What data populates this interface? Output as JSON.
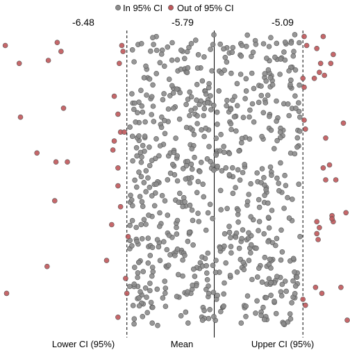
{
  "chart_data": {
    "type": "scatter",
    "title": "",
    "xlabel": "",
    "ylabel": "",
    "legend": {
      "placement": "top-center",
      "items": [
        {
          "label": "In 95% CI",
          "color": "#8c8c8c"
        },
        {
          "label": "Out of 95% CI",
          "color": "#c0575a"
        }
      ]
    },
    "reference_lines": [
      {
        "name": "lower",
        "value": -6.48,
        "value_label": "-6.48",
        "bottom_label": "Lower CI (95%)",
        "style": "dashed"
      },
      {
        "name": "mean",
        "value": -5.79,
        "value_label": "-5.79",
        "bottom_label": "Mean",
        "style": "solid"
      },
      {
        "name": "upper",
        "value": -5.09,
        "value_label": "-5.09",
        "bottom_label": "Upper CI (95%)",
        "style": "dashed"
      }
    ],
    "xlim": [
      -7.46,
      -4.74
    ],
    "ylim": [
      0,
      1
    ],
    "grid": false,
    "in_ci_color": "#8c8c8c",
    "out_ci_color": "#c0575a",
    "in_ci_count": 700,
    "series": [
      {
        "name": "Out of 95% CI",
        "points": [
          [
            -7.44,
            0.95
          ],
          [
            -7.03,
            0.96
          ],
          [
            -7.0,
            0.93
          ],
          [
            -7.33,
            0.89
          ],
          [
            -7.19,
            0.59
          ],
          [
            -7.32,
            0.71
          ],
          [
            -7.43,
            0.12
          ],
          [
            -7.11,
            0.21
          ],
          [
            -7.05,
            0.43
          ],
          [
            -7.04,
            0.56
          ],
          [
            -6.95,
            0.56
          ],
          [
            -6.55,
            0.54
          ],
          [
            -6.59,
            0.6
          ],
          [
            -6.58,
            0.63
          ],
          [
            -6.55,
            0.72
          ],
          [
            -6.53,
            0.66
          ],
          [
            -6.5,
            0.66
          ],
          [
            -6.53,
            0.41
          ],
          [
            -6.51,
            0.93
          ],
          [
            -6.52,
            0.95
          ],
          [
            -6.54,
            0.89
          ],
          [
            -6.55,
            0.04
          ],
          [
            -6.64,
            0.23
          ],
          [
            -6.48,
            0.12
          ],
          [
            -6.55,
            0.48
          ],
          [
            -6.47,
            0.31
          ],
          [
            -6.49,
            0.17
          ],
          [
            -5.09,
            0.84
          ],
          [
            -5.08,
            0.81
          ],
          [
            -5.07,
            0.67
          ],
          [
            -5.06,
            0.95
          ],
          [
            -5.08,
            0.7
          ],
          [
            -5.09,
            0.1
          ],
          [
            -5.07,
            0.08
          ],
          [
            -5.08,
            0.98
          ],
          [
            -4.93,
            0.98
          ],
          [
            -4.98,
            0.94
          ],
          [
            -4.95,
            0.89
          ],
          [
            -4.87,
            0.89
          ],
          [
            -4.85,
            0.92
          ],
          [
            -4.92,
            0.85
          ],
          [
            -4.77,
            0.69
          ],
          [
            -4.91,
            0.64
          ],
          [
            -4.91,
            0.5
          ],
          [
            -4.83,
            0.5
          ],
          [
            -4.98,
            0.36
          ],
          [
            -4.96,
            0.34
          ],
          [
            -4.98,
            0.32
          ],
          [
            -4.85,
            0.36
          ],
          [
            -4.86,
            0.38
          ],
          [
            -4.75,
            0.39
          ],
          [
            -4.94,
            0.12
          ],
          [
            -4.99,
            0.14
          ],
          [
            -4.79,
            0.14
          ],
          [
            -4.74,
            0.03
          ],
          [
            -4.96,
            0.86
          ],
          [
            -5.0,
            0.84
          ],
          [
            -4.86,
            0.37
          ],
          [
            -4.97,
            0.3
          ],
          [
            -4.93,
            0.54
          ],
          [
            -7.1,
            0.9
          ],
          [
            -6.98,
            0.74
          ],
          [
            -6.6,
            0.35
          ],
          [
            -6.58,
            0.78
          ],
          [
            -4.88,
            0.55
          ]
        ]
      }
    ]
  }
}
